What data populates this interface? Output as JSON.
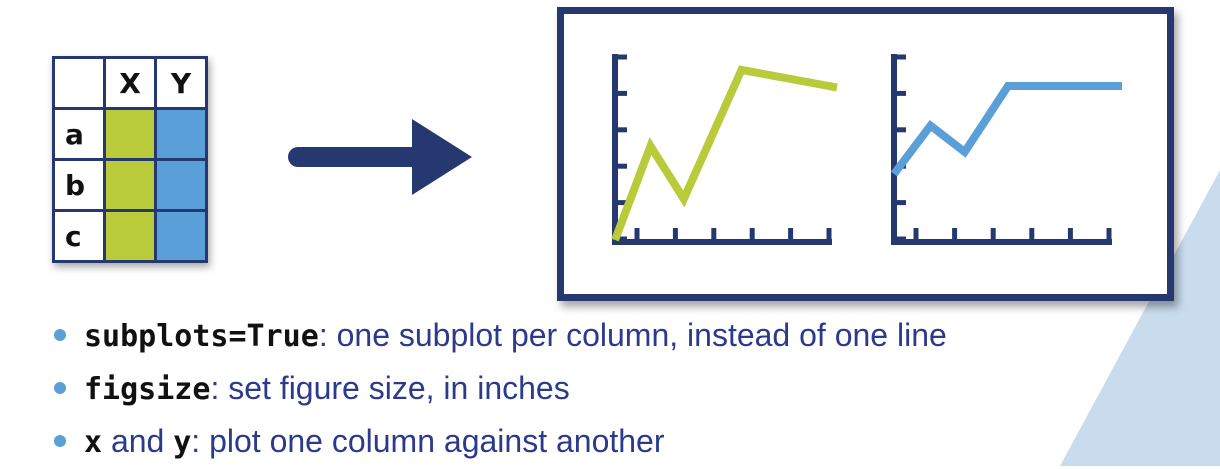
{
  "colors": {
    "navy": "#263870",
    "green": "#b9cb3a",
    "blue": "#5b9fd8",
    "text_blue": "#2c3a8c",
    "triangle": "#c9dcee"
  },
  "table": {
    "headers": [
      "",
      "X",
      "Y"
    ],
    "rows": [
      {
        "label": "a"
      },
      {
        "label": "b"
      },
      {
        "label": "c"
      }
    ]
  },
  "arrow": {
    "icon": "right-arrow-icon"
  },
  "chart_data": [
    {
      "type": "line",
      "series": [
        {
          "values": [
            0,
            3.2,
            1.4,
            5.8,
            5.2
          ]
        }
      ],
      "color": "#b9cb3a",
      "ylim": [
        0,
        6
      ],
      "yticks": 6,
      "xticks": 6,
      "grid": false
    },
    {
      "type": "line",
      "series": [
        {
          "values": [
            3.0,
            5.2,
            4.0,
            7.0,
            7.0,
            7.0
          ]
        }
      ],
      "color": "#5b9fd8",
      "ylim": [
        0,
        8
      ],
      "yticks": 6,
      "xticks": 6,
      "grid": false
    }
  ],
  "bullets": [
    {
      "code": "subplots=True",
      "text": ": one subplot per column, instead of one line"
    },
    {
      "code": "figsize",
      "text": ": set figure size, in inches"
    },
    {
      "code": "x",
      "text": " and ",
      "code2": "y",
      "text2": ": plot one column against another"
    }
  ]
}
